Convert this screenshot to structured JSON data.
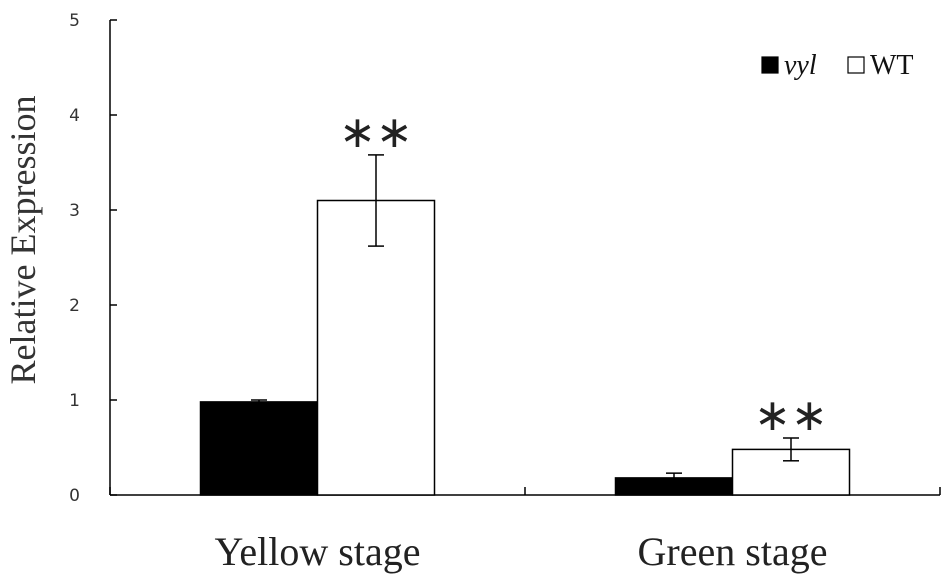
{
  "chart_data": {
    "type": "bar",
    "title": "",
    "xlabel": "",
    "ylabel": "Relative  Expression",
    "ylim": [
      0,
      5
    ],
    "yticks": [
      "0",
      "1",
      "2",
      "3",
      "4",
      "5"
    ],
    "categories": [
      "Yellow stage",
      "Green stage"
    ],
    "series": [
      {
        "name": "vyl",
        "color": "#000000",
        "values": [
          0.98,
          0.18
        ],
        "errors": [
          0.02,
          0.05
        ]
      },
      {
        "name": "WT",
        "color": "#ffffff",
        "values": [
          3.1,
          0.48
        ],
        "errors": [
          0.48,
          0.12
        ]
      }
    ],
    "significance": [
      "**",
      "**"
    ],
    "legend": {
      "position": "top-right",
      "entries": [
        "vyl",
        "WT"
      ]
    },
    "grid": false
  }
}
